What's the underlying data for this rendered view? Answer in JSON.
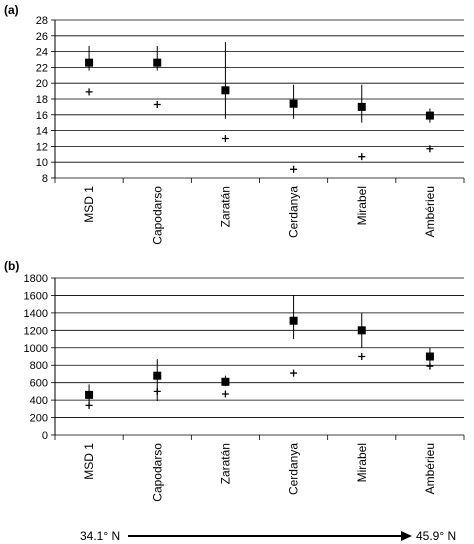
{
  "chart_data": [
    {
      "type": "scatter",
      "panel_label": "(a)",
      "categories": [
        "MSD 1",
        "Capodarso",
        "Zaratán",
        "Cerdanya",
        "Mirabel",
        "Ambérieu"
      ],
      "ylim": [
        8,
        28
      ],
      "yticks": [
        8,
        10,
        12,
        14,
        16,
        18,
        20,
        22,
        24,
        26,
        28
      ],
      "grid": true,
      "series": [
        {
          "marker": "square",
          "values": [
            22.6,
            22.6,
            19.1,
            17.4,
            17.0,
            15.9
          ],
          "range_low": [
            21.6,
            21.6,
            15.5,
            15.5,
            15.0,
            15.0
          ],
          "range_high": [
            24.7,
            24.7,
            25.2,
            19.8,
            19.8,
            16.8
          ]
        },
        {
          "marker": "plus",
          "values": [
            18.9,
            17.3,
            13.0,
            9.1,
            10.7,
            11.7
          ]
        }
      ]
    },
    {
      "type": "scatter",
      "panel_label": "(b)",
      "categories": [
        "MSD 1",
        "Capodarso",
        "Zaratán",
        "Cerdanya",
        "Mirabel",
        "Ambérieu"
      ],
      "ylim": [
        0,
        1800
      ],
      "yticks": [
        0,
        200,
        400,
        600,
        800,
        1000,
        1200,
        1400,
        1600,
        1800
      ],
      "grid": true,
      "series": [
        {
          "marker": "square",
          "values": [
            460,
            680,
            610,
            1310,
            1200,
            900
          ],
          "range_low": [
            360,
            390,
            560,
            1100,
            1000,
            830
          ],
          "range_high": [
            580,
            870,
            680,
            1600,
            1400,
            1000
          ]
        },
        {
          "marker": "plus",
          "values": [
            340,
            500,
            470,
            710,
            900,
            790
          ]
        }
      ]
    }
  ],
  "latitude_axis": {
    "start": "34.1° N",
    "end": "45.9° N"
  }
}
